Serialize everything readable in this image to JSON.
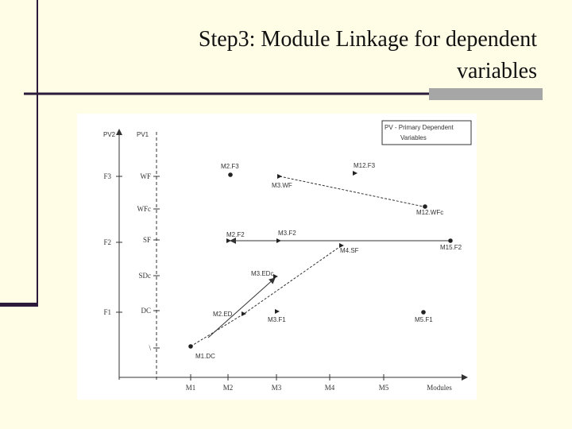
{
  "header": {
    "title_lines": [
      "Step3: Module Linkage for dependent",
      "variables"
    ]
  },
  "figure": {
    "axes": {
      "pv2": "PV2",
      "pv1": "PV1",
      "x_label": "Modules"
    },
    "pv2_levels": [
      "F3",
      "F2",
      "F1"
    ],
    "pv1_levels": [
      "WF",
      "WFc",
      "SF",
      "SDc",
      "DC",
      "\\"
    ],
    "modules": [
      "M1",
      "M2",
      "M3",
      "M4",
      "M5"
    ],
    "legend": [
      "PV - Primary Dependent",
      "Variables"
    ],
    "nodes": [
      {
        "label": "M2.F3"
      },
      {
        "label": "M12.F3"
      },
      {
        "label": "M3.WF"
      },
      {
        "label": "M12.WFc"
      },
      {
        "label": "M2.F2"
      },
      {
        "label": "M3.F2"
      },
      {
        "label": "M15.F2"
      },
      {
        "label": "M4.SF"
      },
      {
        "label": "M3.EDc"
      },
      {
        "label": "M2.ED"
      },
      {
        "label": "M3.F1"
      },
      {
        "label": "M5.F1"
      },
      {
        "label": "M1.DC"
      }
    ]
  }
}
